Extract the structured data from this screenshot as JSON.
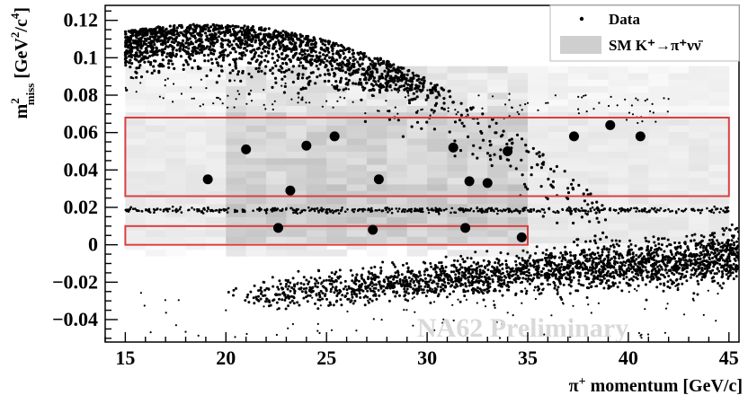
{
  "chart_data": {
    "type": "scatter",
    "title": "",
    "xlabel": {
      "prefix": "π",
      "sup": "+",
      "suffix": " momentum [GeV/c]"
    },
    "ylabel": {
      "base": "m",
      "sup": "2",
      "sub": "miss",
      "suffix": " [GeV",
      "unit_sup1": "2",
      "mid": "/c",
      "unit_sup2": "4",
      "end": "]"
    },
    "xlim": [
      14,
      45.5
    ],
    "ylim": [
      -0.052,
      0.128
    ],
    "x_ticks": [
      {
        "value": 15,
        "label": "15"
      },
      {
        "value": 20,
        "label": "20"
      },
      {
        "value": 25,
        "label": "25"
      },
      {
        "value": 30,
        "label": "30"
      },
      {
        "value": 35,
        "label": "35"
      },
      {
        "value": 40,
        "label": "40"
      },
      {
        "value": 45,
        "label": "45"
      }
    ],
    "y_ticks": [
      {
        "value": -0.04,
        "label": "−0.04"
      },
      {
        "value": -0.02,
        "label": "−0.02"
      },
      {
        "value": 0,
        "label": "0"
      },
      {
        "value": 0.02,
        "label": "0.02"
      },
      {
        "value": 0.04,
        "label": "0.04"
      },
      {
        "value": 0.06,
        "label": "0.06"
      },
      {
        "value": 0.08,
        "label": "0.08"
      },
      {
        "value": 0.1,
        "label": "0.1"
      },
      {
        "value": 0.12,
        "label": "0.12"
      }
    ],
    "signal_regions": [
      {
        "x": [
          15,
          45
        ],
        "y": [
          0.026,
          0.068
        ]
      },
      {
        "x": [
          15,
          35
        ],
        "y": [
          0,
          0.01
        ]
      }
    ],
    "signal_candidates": [
      {
        "x": 19.1,
        "y": 0.035
      },
      {
        "x": 21.0,
        "y": 0.051
      },
      {
        "x": 22.6,
        "y": 0.009
      },
      {
        "x": 23.2,
        "y": 0.029
      },
      {
        "x": 24.0,
        "y": 0.053
      },
      {
        "x": 25.4,
        "y": 0.058
      },
      {
        "x": 27.3,
        "y": 0.008
      },
      {
        "x": 27.6,
        "y": 0.035
      },
      {
        "x": 31.3,
        "y": 0.052
      },
      {
        "x": 31.9,
        "y": 0.009
      },
      {
        "x": 32.1,
        "y": 0.034
      },
      {
        "x": 33.0,
        "y": 0.033
      },
      {
        "x": 34.0,
        "y": 0.05
      },
      {
        "x": 34.7,
        "y": 0.004
      },
      {
        "x": 37.3,
        "y": 0.058
      },
      {
        "x": 39.1,
        "y": 0.064
      },
      {
        "x": 40.6,
        "y": 0.058
      }
    ],
    "legend": {
      "position": "top-right",
      "entries": [
        {
          "name": "Data",
          "marker": "dot"
        },
        {
          "name": "SM K⁺→π⁺νν̄",
          "marker": "gray-box"
        }
      ]
    },
    "watermark": "NA62 Preliminary",
    "grid": false,
    "colors": {
      "signal_box": "#d94040",
      "sm_fill": "#cfcfcf",
      "points": "#000000"
    }
  }
}
